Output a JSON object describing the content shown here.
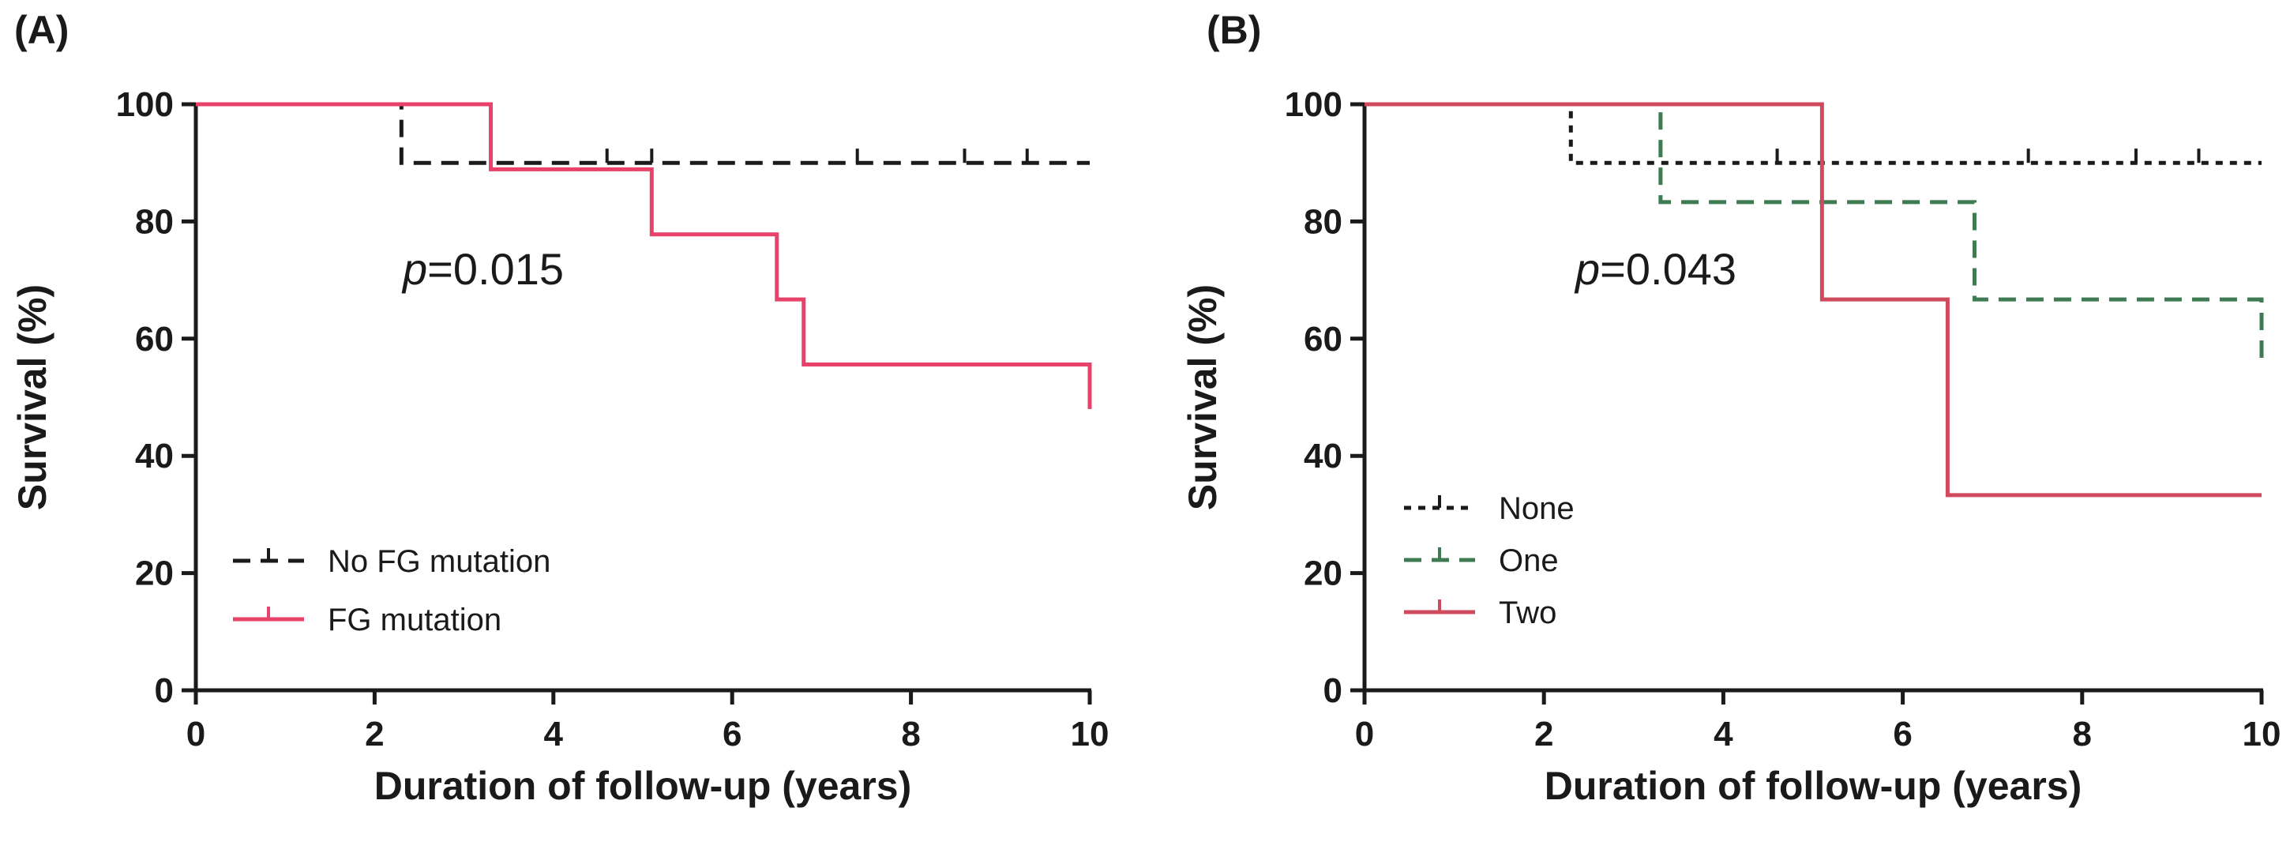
{
  "chart_data": [
    {
      "type": "line",
      "subtype": "kaplan-meier",
      "panel_label": "(A)",
      "xlabel": "Duration of follow-up (years)",
      "ylabel": "Survival (%)",
      "xlim": [
        0,
        10
      ],
      "ylim": [
        0,
        100
      ],
      "xticks": [
        "0",
        "2",
        "4",
        "6",
        "8",
        "10"
      ],
      "yticks": [
        "0",
        "20",
        "40",
        "60",
        "80",
        "100"
      ],
      "annotation": {
        "italic": "p",
        "text": "=0.015"
      },
      "legend_position": "bottom-left",
      "series": [
        {
          "name": "No FG mutation",
          "color": "#1a1a1a",
          "style": "dashed",
          "steps": [
            [
              0,
              100
            ],
            [
              2.3,
              90
            ],
            [
              10,
              90
            ]
          ],
          "censored": [
            4.6,
            5.1,
            7.4,
            8.6,
            9.3
          ]
        },
        {
          "name": "FG mutation",
          "color": "#e8426a",
          "style": "solid",
          "steps": [
            [
              0,
              100
            ],
            [
              3.3,
              88.9
            ],
            [
              5.1,
              77.8
            ],
            [
              6.5,
              66.7
            ],
            [
              6.8,
              55.6
            ],
            [
              10,
              48
            ]
          ],
          "censored": []
        }
      ]
    },
    {
      "type": "line",
      "subtype": "kaplan-meier",
      "panel_label": "(B)",
      "xlabel": "Duration of follow-up (years)",
      "ylabel": "Survival (%)",
      "xlim": [
        0,
        10
      ],
      "ylim": [
        0,
        100
      ],
      "xticks": [
        "0",
        "2",
        "4",
        "6",
        "8",
        "10"
      ],
      "yticks": [
        "0",
        "20",
        "40",
        "60",
        "80",
        "100"
      ],
      "annotation": {
        "italic": "p",
        "text": "=0.043"
      },
      "legend_position": "bottom-left",
      "series": [
        {
          "name": "None",
          "color": "#1a1a1a",
          "style": "dotted",
          "steps": [
            [
              0,
              100
            ],
            [
              2.3,
              90
            ],
            [
              10,
              90
            ]
          ],
          "censored": [
            4.6,
            7.4,
            8.6,
            9.3
          ]
        },
        {
          "name": "One",
          "color": "#3e7a52",
          "style": "dashed",
          "steps": [
            [
              0,
              100
            ],
            [
              3.3,
              83.3
            ],
            [
              6.8,
              66.7
            ],
            [
              10,
              55.6
            ]
          ],
          "censored": []
        },
        {
          "name": "Two",
          "color": "#d04a5e",
          "style": "solid",
          "steps": [
            [
              0,
              100
            ],
            [
              5.1,
              66.7
            ],
            [
              6.5,
              33.3
            ],
            [
              10,
              33.3
            ]
          ],
          "censored": []
        }
      ]
    }
  ]
}
